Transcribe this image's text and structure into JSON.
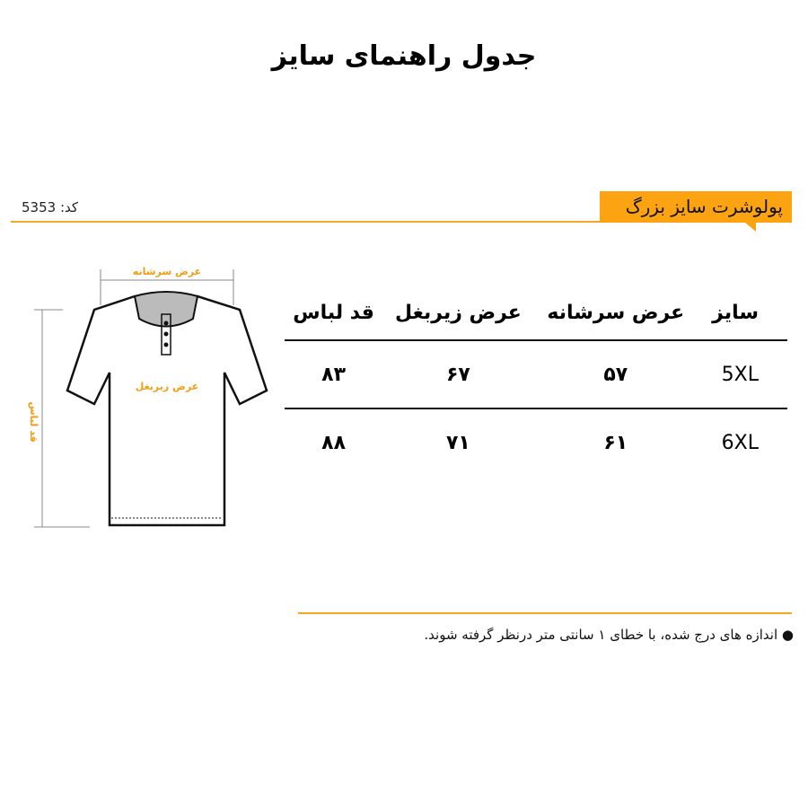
{
  "title": "جدول راهنمای سایز",
  "product": {
    "name": "پولوشرت سایز بزرگ",
    "code_label": "کد:",
    "code": "5353"
  },
  "diagram": {
    "shoulder_label": "عرض سرشانه",
    "chest_label": "عرض زیربغل",
    "length_label": "قد لباس"
  },
  "table": {
    "headers": [
      "سایز",
      "عرض سرشانه",
      "عرض زیربغل",
      "قد لباس"
    ],
    "rows": [
      [
        "5XL",
        "۵۷",
        "۶۷",
        "۸۳"
      ],
      [
        "6XL",
        "۶۱",
        "۷۱",
        "۸۸"
      ]
    ]
  },
  "note": "اندازه های درج شده، با خطای ۱ سانتی متر درنظر گرفته شوند.",
  "colors": {
    "accent": "#fca311"
  }
}
